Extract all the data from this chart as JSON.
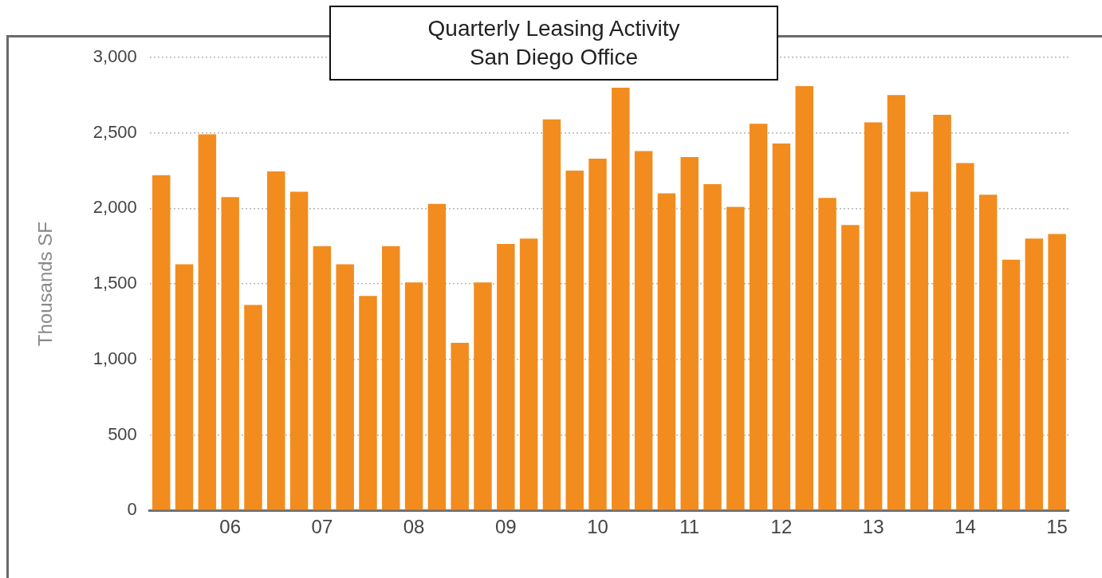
{
  "chart_data": {
    "type": "bar",
    "title": "Quarterly Leasing Activity",
    "subtitle": "San Diego Office",
    "ylabel": "Thousands SF",
    "categories": [
      null,
      null,
      null,
      "06",
      null,
      null,
      null,
      "07",
      null,
      null,
      null,
      "08",
      null,
      null,
      null,
      "09",
      null,
      null,
      null,
      "10",
      null,
      null,
      null,
      "11",
      null,
      null,
      null,
      "12",
      null,
      null,
      null,
      "13",
      null,
      null,
      null,
      "14",
      null,
      null,
      null,
      "15"
    ],
    "values": [
      2220,
      1630,
      2490,
      2075,
      1360,
      2245,
      2110,
      1750,
      1630,
      1420,
      1750,
      1510,
      2030,
      1110,
      1510,
      1765,
      1800,
      2590,
      2250,
      2330,
      2800,
      2380,
      2100,
      2340,
      2160,
      2010,
      2560,
      2430,
      2810,
      2070,
      1890,
      2570,
      2750,
      2110,
      2620,
      2300,
      2090,
      1660,
      1800,
      1830
    ],
    "color": "#f28c1e",
    "ylim": [
      0,
      3000
    ],
    "yticks": [
      {
        "value": 0,
        "label": "0"
      },
      {
        "value": 500,
        "label": "500"
      },
      {
        "value": 1000,
        "label": "1,000"
      },
      {
        "value": 1500,
        "label": "1,500"
      },
      {
        "value": 2000,
        "label": "2,000"
      },
      {
        "value": 2500,
        "label": "2,500"
      },
      {
        "value": 3000,
        "label": "3,000"
      }
    ],
    "grid": "y",
    "legend": false
  }
}
